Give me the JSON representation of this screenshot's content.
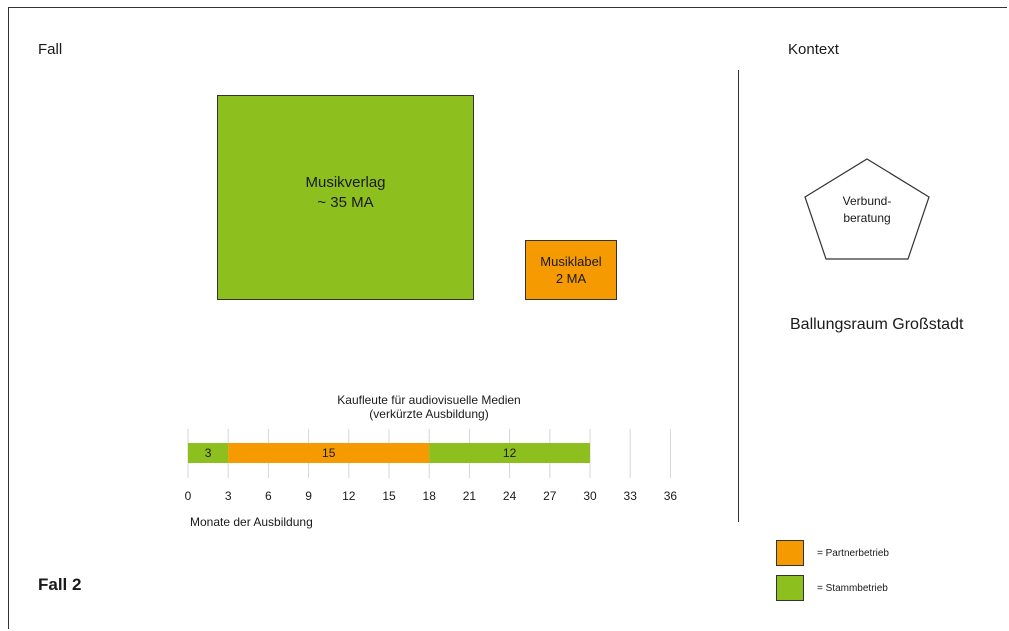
{
  "header": {
    "left_label": "Fall",
    "right_label": "Kontext"
  },
  "colors": {
    "green": "#8dbf1f",
    "orange": "#f59a00"
  },
  "boxes": {
    "verlag": {
      "line1": "Musikverlag",
      "line2": "~ 35 MA",
      "color": "#8dbf1f"
    },
    "label": {
      "line1": "Musiklabel",
      "line2": "2 MA",
      "color": "#f59a00"
    }
  },
  "context": {
    "pentagon": {
      "line1": "Verbund-",
      "line2": "beratung"
    },
    "region": "Ballungsraum Großstadt"
  },
  "chart_data": {
    "type": "bar",
    "title_line1": "Kaufleute für audiovisuelle Medien",
    "title_line2": "(verkürzte Ausbildung)",
    "xlabel": "Monate der Ausbildung",
    "xlim": [
      0,
      36
    ],
    "xticks": [
      0,
      3,
      6,
      9,
      12,
      15,
      18,
      21,
      24,
      27,
      30,
      33,
      36
    ],
    "grid": true,
    "segments": [
      {
        "start": 0,
        "end": 3,
        "value": 3,
        "label": "3",
        "type": "Stammbetrieb"
      },
      {
        "start": 3,
        "end": 18,
        "value": 15,
        "label": "15",
        "type": "Partnerbetrieb"
      },
      {
        "start": 18,
        "end": 30,
        "value": 12,
        "label": "12",
        "type": "Stammbetrieb"
      }
    ]
  },
  "footer": {
    "case_label": "Fall 2"
  },
  "legend": [
    {
      "text": "= Partnerbetrieb",
      "color": "#f59a00"
    },
    {
      "text": "= Stammbetrieb",
      "color": "#8dbf1f"
    }
  ]
}
